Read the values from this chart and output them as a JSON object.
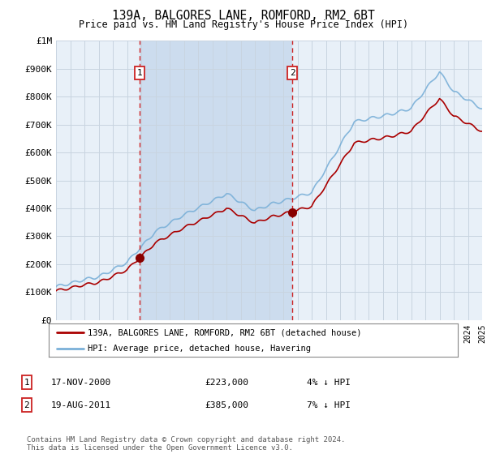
{
  "title": "139A, BALGORES LANE, ROMFORD, RM2 6BT",
  "subtitle": "Price paid vs. HM Land Registry's House Price Index (HPI)",
  "background_color": "#ffffff",
  "plot_bg_color": "#e8f0f8",
  "shade_color": "#ccdcee",
  "grid_color": "#c8d4e0",
  "x_start_year": 1995,
  "x_end_year": 2025,
  "y_min": 0,
  "y_max": 1000000,
  "y_ticks": [
    0,
    100000,
    200000,
    300000,
    400000,
    500000,
    600000,
    700000,
    800000,
    900000,
    1000000
  ],
  "y_tick_labels": [
    "£0",
    "£100K",
    "£200K",
    "£300K",
    "£400K",
    "£500K",
    "£600K",
    "£700K",
    "£800K",
    "£900K",
    "£1M"
  ],
  "sale1_year": 2000.88,
  "sale1_price": 223000,
  "sale2_year": 2011.63,
  "sale2_price": 385000,
  "hpi_color": "#7ab0d8",
  "price_color": "#aa0000",
  "sale_marker_color": "#880000",
  "vline_color": "#cc2222",
  "legend_label1": "139A, BALGORES LANE, ROMFORD, RM2 6BT (detached house)",
  "legend_label2": "HPI: Average price, detached house, Havering",
  "table_row1": [
    "1",
    "17-NOV-2000",
    "£223,000",
    "4% ↓ HPI"
  ],
  "table_row2": [
    "2",
    "19-AUG-2011",
    "£385,000",
    "7% ↓ HPI"
  ],
  "footnote": "Contains HM Land Registry data © Crown copyright and database right 2024.\nThis data is licensed under the Open Government Licence v3.0.",
  "font_family": "DejaVu Sans Mono"
}
